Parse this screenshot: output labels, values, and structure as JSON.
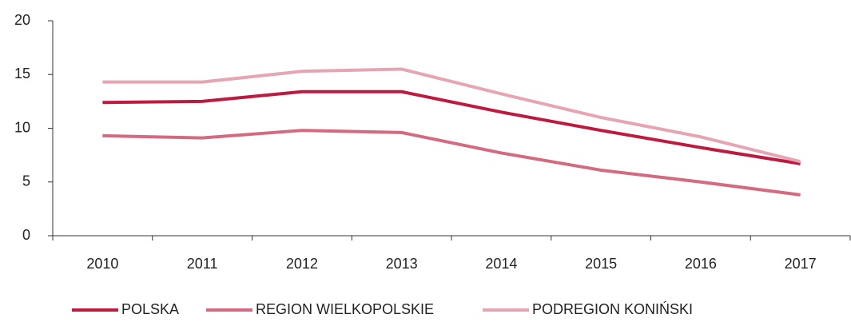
{
  "chart_data": {
    "type": "line",
    "categories": [
      "2010",
      "2011",
      "2012",
      "2013",
      "2014",
      "2015",
      "2016",
      "2017"
    ],
    "series": [
      {
        "name": "POLSKA",
        "color": "#be1a40",
        "values": [
          12.4,
          12.5,
          13.4,
          13.4,
          11.5,
          9.8,
          8.2,
          6.7
        ]
      },
      {
        "name": "REGION WIELKOPOLSKIE",
        "color": "#d46a80",
        "values": [
          9.3,
          9.1,
          9.8,
          9.6,
          7.7,
          6.1,
          5.0,
          3.8
        ]
      },
      {
        "name": "PODREGION KONIŃSKI",
        "color": "#e6a5b3",
        "values": [
          14.3,
          14.3,
          15.3,
          15.5,
          13.2,
          11.0,
          9.2,
          6.9
        ]
      }
    ],
    "ylim": [
      0,
      20
    ],
    "yticks": [
      0,
      5,
      10,
      15,
      20
    ],
    "grid": false,
    "legend": "bottom"
  }
}
